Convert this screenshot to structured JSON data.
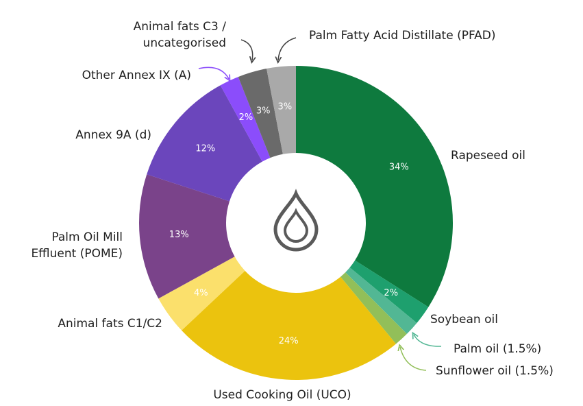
{
  "chart_data": {
    "type": "pie",
    "donut": true,
    "title": "",
    "center_icon": "oil-drop-icon",
    "slices": [
      {
        "name": "Rapeseed oil",
        "value": 34,
        "label_text": "34%",
        "color": "#0e7a3e"
      },
      {
        "name": "Soybean oil",
        "value": 2,
        "label_text": "2%",
        "color": "#1ea06e"
      },
      {
        "name": "Palm oil (1.5%)",
        "value": 1.5,
        "label_text": "",
        "color": "#52b794"
      },
      {
        "name": "Sunflower oil (1.5%)",
        "value": 1.5,
        "label_text": "",
        "color": "#92bf59"
      },
      {
        "name": "Used Cooking Oil (UCO)",
        "value": 24,
        "label_text": "24%",
        "color": "#ebc30e"
      },
      {
        "name": "Animal fats C1/C2",
        "value": 4,
        "label_text": "4%",
        "color": "#fbe06c"
      },
      {
        "name": "Palm Oil Mill\nEffluent (POME)",
        "value": 13,
        "label_text": "13%",
        "color": "#7a438a"
      },
      {
        "name": "Annex 9A (d)",
        "value": 12,
        "label_text": "12%",
        "color": "#6b46bc"
      },
      {
        "name": "Other Annex IX (A)",
        "value": 2,
        "label_text": "2%",
        "color": "#8b4dfb"
      },
      {
        "name": "Animal fats C3 /\nuncategorised",
        "value": 3,
        "label_text": "3%",
        "color": "#6a6a6a"
      },
      {
        "name": "Palm Fatty Acid Distillate (PFAD)",
        "value": 3,
        "label_text": "3%",
        "color": "#a9a9a9"
      }
    ]
  }
}
